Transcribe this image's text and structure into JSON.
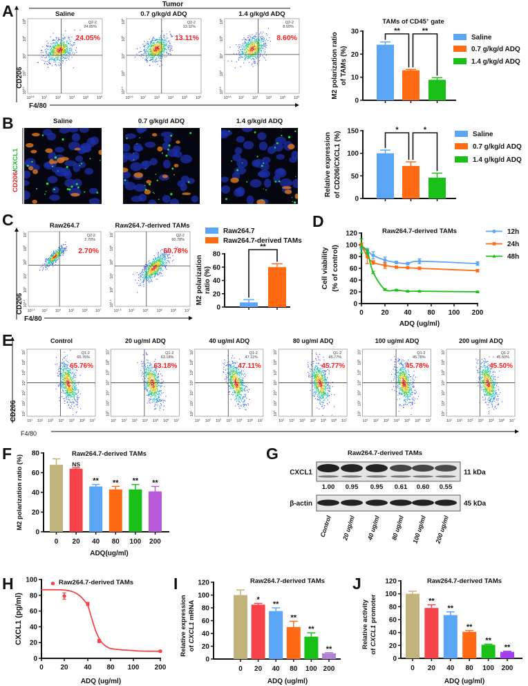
{
  "panel_labels": [
    "A",
    "B",
    "C",
    "D",
    "E",
    "F",
    "G",
    "H",
    "I",
    "J"
  ],
  "colors": {
    "blue": "#5aa5f5",
    "orange": "#ff6a13",
    "green": "#18c018",
    "tan": "#c2b27c",
    "red": "#f5424b",
    "purple": "#b95ad8",
    "light_purple": "#b383d6",
    "violet": "#a43ff0",
    "percent_text": "#ff1a1a"
  },
  "flow": {
    "A": {
      "header": "Tumor",
      "x_axis_label": "F4/80",
      "y_axis_label": "CD206",
      "x_ticks": [
        {
          "b": "10",
          "e": "0.8"
        },
        {
          "b": "10",
          "e": "2"
        },
        {
          "b": "10",
          "e": "3"
        },
        {
          "b": "10",
          "e": "4"
        },
        {
          "b": "10",
          "e": "5"
        },
        {
          "b": "10",
          "e": "5"
        }
      ],
      "y_ticks": [
        {
          "b": "10",
          "e": "1.6"
        },
        {
          "b": "10",
          "e": "3"
        },
        {
          "b": "10",
          "e": "4"
        },
        {
          "b": "10",
          "e": "5"
        },
        {
          "b": "10",
          "e": "6"
        }
      ],
      "plots": [
        {
          "title": "Saline",
          "gate": "Q2-2",
          "gate_value": "24.05%",
          "percent": "24.05%"
        },
        {
          "title": "0.7 g/kg/d ADQ",
          "gate": "Q2-2",
          "gate_value": "13.11%",
          "percent": "13.11%"
        },
        {
          "title": "1.4 g/kg/d ADQ",
          "gate": "Q2-2",
          "gate_value": "8.60%",
          "percent": "8.60%"
        }
      ]
    },
    "C": {
      "x_axis_label": "F4/80",
      "y_axis_label": "CD206",
      "x_ticks": [
        {
          "b": "10",
          "e": "1.4"
        },
        {
          "b": "10",
          "e": "3"
        },
        {
          "b": "10",
          "e": "4"
        },
        {
          "b": "10",
          "e": "5"
        },
        {
          "b": "10",
          "e": "6"
        },
        {
          "b": "10",
          "e": "7"
        }
      ],
      "y_ticks": [
        {
          "b": "10",
          "e": "1.2"
        },
        {
          "b": "10",
          "e": "3"
        },
        {
          "b": "10",
          "e": "4"
        },
        {
          "b": "10",
          "e": "5"
        },
        {
          "b": "10",
          "e": "6"
        },
        {
          "b": "10",
          "e": "7"
        }
      ],
      "plots": [
        {
          "title": "Raw264.7",
          "gate": "Q2-2",
          "gate_value": "2.70%",
          "percent": "2.70%"
        },
        {
          "title": "Raw264.7-derived TAMs",
          "gate": "Q2-2",
          "gate_value": "60.78%",
          "percent": "60.78%"
        }
      ]
    },
    "E": {
      "x_axis_label": "F4/80",
      "y_axis_label": "CD206",
      "x_ticks": [
        {
          "b": "10",
          "e": "1"
        },
        {
          "b": "10",
          "e": "2"
        },
        {
          "b": "10",
          "e": "3"
        },
        {
          "b": "10",
          "e": "4"
        },
        {
          "b": "10",
          "e": "5"
        },
        {
          "b": "10",
          "e": "6"
        },
        {
          "b": "10",
          "e": "7"
        }
      ],
      "y_ticks": [
        {
          "b": "10",
          "e": "1"
        },
        {
          "b": "10",
          "e": "2"
        },
        {
          "b": "10",
          "e": "3"
        },
        {
          "b": "10",
          "e": "4"
        },
        {
          "b": "10",
          "e": "5"
        },
        {
          "b": "10",
          "e": "6"
        },
        {
          "b": "10",
          "e": "7"
        }
      ],
      "plots": [
        {
          "title": "Control",
          "gate": "Q1-2",
          "gate_value": "65.76%",
          "percent": "65.76%"
        },
        {
          "title": "20 ug/ml ADQ",
          "gate": "Q1-2",
          "gate_value": "63.18%",
          "percent": "63.18%"
        },
        {
          "title": "40 ug/ml ADQ",
          "gate": "Q1-2",
          "gate_value": "47.11%",
          "percent": "47.11%"
        },
        {
          "title": "80 ug/ml ADQ",
          "gate": "Q1-2",
          "gate_value": "45.77%",
          "percent": "45.77%"
        },
        {
          "title": "100 ug/ml ADQ",
          "gate": "Q1-2",
          "gate_value": "45.78%",
          "percent": "45.78%"
        },
        {
          "title": "200 ug/ml ADQ",
          "gate": "Q1-2",
          "gate_value": "45.50%",
          "percent": "45.50%"
        }
      ]
    }
  },
  "immunofluorescence": {
    "y_label_parts": [
      "CD206",
      "/",
      "CXCL1"
    ],
    "titles": [
      "Saline",
      "0.7 g/kg/d ADQ",
      "1.4 g/kg/d ADQ"
    ]
  },
  "western_blot": {
    "title": "Raw264.7-derived TAMs",
    "bands": [
      {
        "label": "CXCL1",
        "size": "11 kDa"
      },
      {
        "label": "β-actin",
        "size": "45 kDa"
      }
    ],
    "quantification": [
      "1.00",
      "0.95",
      "0.95",
      "0.61",
      "0.60",
      "0.55"
    ],
    "lanes": [
      "Control",
      "20 ug/ml",
      "40 ug/ml",
      "80 ug/ml",
      "100 ug/ml",
      "200 ug/ml"
    ]
  },
  "chart_data": [
    {
      "panel": "A",
      "type": "bar",
      "title_parts": [
        "TAMs of CD45",
        "+",
        " gate"
      ],
      "ylabel": [
        "M2 polarization ratio",
        "of TAMs (%)"
      ],
      "categories": [
        "Saline",
        "0.7 g/kg/d ADQ",
        "1.4 g/kg/d ADQ"
      ],
      "values": [
        24.1,
        13.0,
        8.9
      ],
      "errors": [
        1.2,
        0.4,
        0.9
      ],
      "colors": [
        "#5aa5f5",
        "#ff6a13",
        "#18c018"
      ],
      "ylim": [
        0,
        30
      ],
      "yticks": [
        0,
        10,
        20,
        30
      ],
      "legend": "right",
      "significance": [
        {
          "from": 0,
          "to": 1,
          "label": "**"
        },
        {
          "from": 1,
          "to": 2,
          "label": "**"
        }
      ]
    },
    {
      "panel": "B",
      "type": "bar",
      "ylabel": [
        "Relative expression",
        "of CD206/CXCL1 (%)"
      ],
      "categories": [
        "Saline",
        "0.7 g/kg/d ADQ",
        "1.4 g/kg/d ADQ"
      ],
      "values": [
        100,
        72,
        46
      ],
      "errors": [
        7,
        9,
        10
      ],
      "colors": [
        "#5aa5f5",
        "#ff6a13",
        "#18c018"
      ],
      "ylim": [
        0,
        150
      ],
      "yticks": [
        0,
        50,
        100,
        150
      ],
      "legend": "right",
      "significance": [
        {
          "from": 0,
          "to": 1,
          "label": "*"
        },
        {
          "from": 1,
          "to": 2,
          "label": "*"
        }
      ]
    },
    {
      "panel": "C",
      "type": "bar",
      "ylabel": [
        "M2 polarization",
        "ratio (%)"
      ],
      "categories": [
        "Raw264.7",
        "Raw264.7-derived TAMs"
      ],
      "values": [
        7,
        60
      ],
      "errors": [
        4,
        5
      ],
      "colors": [
        "#5aa5f5",
        "#ff6a13"
      ],
      "ylim": [
        0,
        80
      ],
      "yticks": [
        0,
        20,
        40,
        60,
        80
      ],
      "legend": "top",
      "significance": [
        {
          "from": 0,
          "to": 1,
          "label": "**"
        }
      ]
    },
    {
      "panel": "D",
      "type": "line",
      "title": "Raw264.7-derived TAMs",
      "xlabel": "ADQ (ug/ml)",
      "ylabel": [
        "Cell viability",
        "(% of control)"
      ],
      "xticks": [
        0,
        20,
        40,
        80,
        100,
        200
      ],
      "ylim": [
        0,
        120
      ],
      "yticks": [
        0,
        20,
        40,
        60,
        80,
        100,
        120
      ],
      "legend": "right",
      "series": [
        {
          "name": "12h",
          "color": "#5aa5f5",
          "marker": "circle",
          "x": [
            0,
            5,
            10,
            20,
            30,
            40,
            60,
            200
          ],
          "y": [
            95,
            90,
            82,
            74,
            70,
            68,
            72,
            68
          ],
          "err": [
            3,
            4,
            6,
            5,
            2,
            2,
            4,
            3
          ]
        },
        {
          "name": "24h",
          "color": "#ff6a13",
          "marker": "square",
          "x": [
            0,
            5,
            10,
            20,
            30,
            40,
            60,
            200
          ],
          "y": [
            100,
            80,
            70,
            65,
            62,
            61,
            60,
            56
          ],
          "err": [
            3,
            12,
            3,
            5,
            2,
            2,
            2,
            2
          ]
        },
        {
          "name": "48h",
          "color": "#18c018",
          "marker": "triangle",
          "x": [
            0,
            5,
            10,
            20,
            30,
            40,
            60,
            200
          ],
          "y": [
            98,
            88,
            53,
            24,
            23,
            21,
            21,
            20
          ],
          "err": [
            12,
            3,
            2,
            1,
            1,
            1,
            1,
            1
          ]
        }
      ]
    },
    {
      "panel": "F",
      "type": "bar",
      "title": "Raw264.7-derived TAMs",
      "xlabel": "ADQ(ug/ml)",
      "ylabel": [
        "M2 polarization ratio (%)"
      ],
      "categories": [
        "0",
        "20",
        "40",
        "80",
        "100",
        "200"
      ],
      "values": [
        68,
        64,
        46,
        43,
        43,
        41
      ],
      "errors": [
        6,
        1,
        2,
        3,
        5,
        5
      ],
      "annotations": [
        "",
        "NS",
        "**",
        "**",
        "**",
        "**"
      ],
      "colors": [
        "#c2b27c",
        "#f5424b",
        "#5aa5f5",
        "#ff6a13",
        "#18c018",
        "#b95ad8"
      ],
      "ylim": [
        0,
        80
      ],
      "yticks": [
        0,
        20,
        40,
        60,
        80
      ]
    },
    {
      "panel": "H",
      "type": "line",
      "title": "Raw264.7-derived TAMs",
      "xlabel": "ADQ (ug/ml)",
      "ylabel": [
        "CXCL1 (pg/ml)"
      ],
      "xticks": [
        0,
        20,
        40,
        80,
        100,
        200
      ],
      "ylim": [
        0,
        100
      ],
      "yticks": [
        0,
        20,
        40,
        60,
        80,
        100
      ],
      "series": [
        {
          "color": "#f5424b",
          "marker": "circle",
          "x": [
            10,
            20,
            40,
            60,
            200
          ],
          "y": [
            95,
            79,
            69,
            22,
            9
          ],
          "err": [
            1,
            4,
            2,
            2,
            1
          ]
        }
      ]
    },
    {
      "panel": "I",
      "type": "bar",
      "title": "Raw264.7-derived TAMs",
      "xlabel": "ADQ (ug/ml)",
      "ylabel_parts": [
        [
          "Relative expression"
        ],
        [
          "of ",
          "CXCL1",
          " mRNA"
        ]
      ],
      "categories": [
        "0",
        "20",
        "40",
        "80",
        "100",
        "200"
      ],
      "values": [
        100,
        85,
        75,
        50,
        35,
        9
      ],
      "errors": [
        8,
        2,
        5,
        9,
        6,
        1
      ],
      "annotations": [
        "",
        "*",
        "**",
        "**",
        "**",
        "**"
      ],
      "colors": [
        "#c2b27c",
        "#f5424b",
        "#5aa5f5",
        "#ff6a13",
        "#18c018",
        "#b383d6"
      ],
      "ylim": [
        0,
        120
      ],
      "yticks": [
        0,
        20,
        40,
        60,
        80,
        100,
        120
      ]
    },
    {
      "panel": "J",
      "type": "bar",
      "title": "Raw264.7-derived TAMs",
      "xlabel": "ADQ (ug/ml)",
      "ylabel_parts": [
        [
          "Relative activity"
        ],
        [
          "of ",
          "CXCL1",
          " promoter"
        ]
      ],
      "categories": [
        "0",
        "20",
        "40",
        "80",
        "100",
        "200"
      ],
      "values": [
        100,
        78,
        67,
        41,
        21,
        10
      ],
      "errors": [
        4,
        5,
        5,
        2,
        1,
        1
      ],
      "annotations": [
        "",
        "**",
        "**",
        "**",
        "**",
        "**"
      ],
      "colors": [
        "#c2b27c",
        "#f5424b",
        "#5aa5f5",
        "#ff6a13",
        "#18c018",
        "#a43ff0"
      ],
      "ylim": [
        0,
        120
      ],
      "yticks": [
        0,
        20,
        40,
        60,
        80,
        100,
        120
      ]
    }
  ]
}
